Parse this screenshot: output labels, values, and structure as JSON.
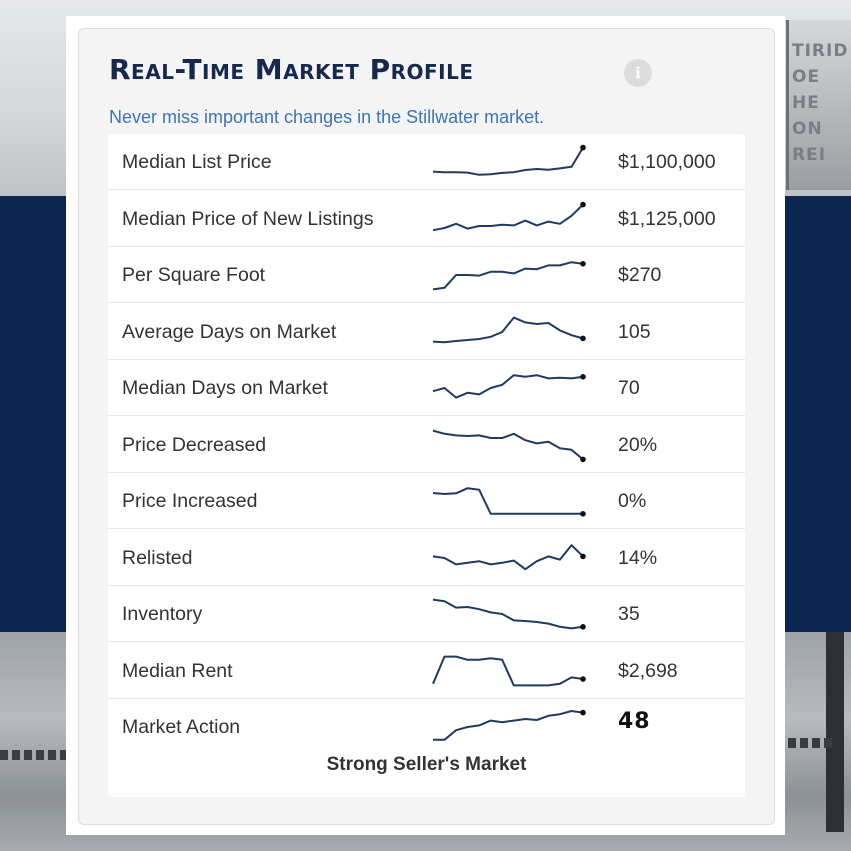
{
  "widget": {
    "title": "Real-Time Market Profile",
    "info_icon": "info-icon",
    "subtitle": "Never miss important changes in the Stillwater market.",
    "summary": "Strong Seller's Market"
  },
  "background": {
    "sign_text": "TIRID OE HE ON REI"
  },
  "colors": {
    "navy": "#0b2751",
    "title": "#16294d",
    "link": "#3f73b3",
    "spark": "#1f3a63"
  },
  "metrics": [
    {
      "label": "Median List Price",
      "value": "$1,100,000",
      "trend": [
        0.2,
        0.18,
        0.18,
        0.17,
        0.1,
        0.12,
        0.16,
        0.18,
        0.25,
        0.28,
        0.26,
        0.3,
        0.35,
        0.95
      ]
    },
    {
      "label": "Median Price of New Listings",
      "value": "$1,125,000",
      "trend": [
        0.15,
        0.22,
        0.35,
        0.2,
        0.28,
        0.28,
        0.32,
        0.3,
        0.45,
        0.3,
        0.42,
        0.35,
        0.6,
        0.95
      ]
    },
    {
      "label": "Per Square Foot",
      "value": "$270",
      "trend": [
        0.05,
        0.1,
        0.5,
        0.5,
        0.48,
        0.6,
        0.6,
        0.55,
        0.7,
        0.68,
        0.8,
        0.8,
        0.9,
        0.85
      ]
    },
    {
      "label": "Average Days on Market",
      "value": "105",
      "trend": [
        0.2,
        0.18,
        0.22,
        0.25,
        0.28,
        0.35,
        0.5,
        0.95,
        0.8,
        0.75,
        0.78,
        0.55,
        0.4,
        0.3
      ]
    },
    {
      "label": "Median Days on Market",
      "value": "70",
      "trend": [
        0.4,
        0.5,
        0.2,
        0.35,
        0.3,
        0.5,
        0.6,
        0.9,
        0.85,
        0.9,
        0.8,
        0.82,
        0.8,
        0.85
      ]
    },
    {
      "label": "Price Decreased",
      "value": "20%",
      "trend": [
        0.95,
        0.85,
        0.8,
        0.78,
        0.8,
        0.72,
        0.72,
        0.85,
        0.65,
        0.55,
        0.6,
        0.4,
        0.35,
        0.05
      ]
    },
    {
      "label": "Price Increased",
      "value": "0%",
      "trend": [
        0.75,
        0.72,
        0.74,
        0.9,
        0.85,
        0.1,
        0.1,
        0.1,
        0.1,
        0.1,
        0.1,
        0.1,
        0.1,
        0.1
      ]
    },
    {
      "label": "Relisted",
      "value": "14%",
      "trend": [
        0.55,
        0.5,
        0.3,
        0.35,
        0.4,
        0.3,
        0.35,
        0.42,
        0.15,
        0.4,
        0.55,
        0.45,
        0.9,
        0.55
      ]
    },
    {
      "label": "Inventory",
      "value": "35",
      "trend": [
        0.95,
        0.9,
        0.7,
        0.72,
        0.65,
        0.55,
        0.5,
        0.3,
        0.28,
        0.25,
        0.2,
        0.1,
        0.05,
        0.1
      ]
    },
    {
      "label": "Median Rent",
      "value": "$2,698",
      "trend": [
        0.1,
        0.95,
        0.95,
        0.85,
        0.85,
        0.9,
        0.85,
        0.05,
        0.05,
        0.05,
        0.05,
        0.1,
        0.3,
        0.25
      ]
    },
    {
      "label": "Market Action",
      "value": "48",
      "trend": [
        0.1,
        0.1,
        0.4,
        0.5,
        0.55,
        0.7,
        0.65,
        0.7,
        0.75,
        0.72,
        0.85,
        0.9,
        1.0,
        0.95
      ]
    }
  ]
}
